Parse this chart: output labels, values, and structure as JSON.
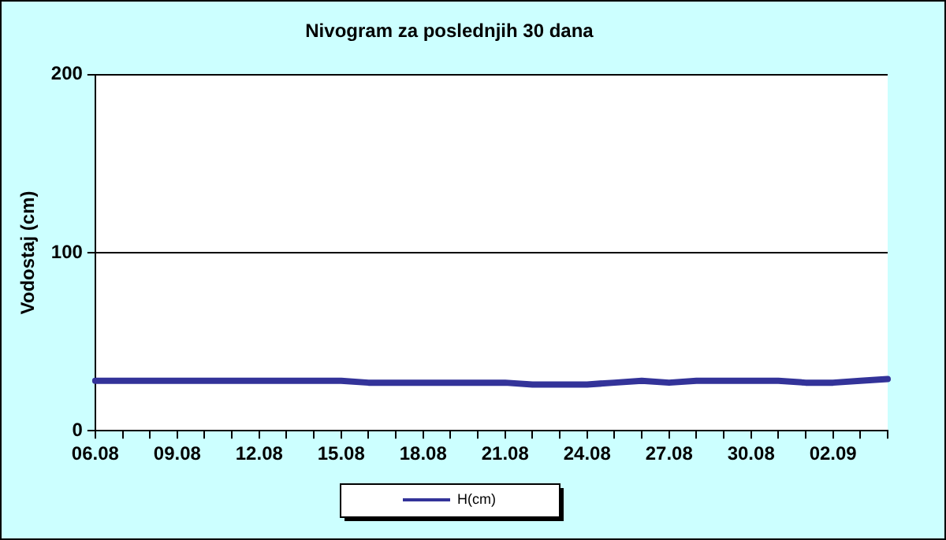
{
  "chart_data": {
    "type": "line",
    "title": "Nivogram za poslednjih 30 dana",
    "ylabel": "Vodostaj (cm)",
    "categories": [
      "06.08",
      null,
      null,
      "09.08",
      null,
      null,
      "12.08",
      null,
      null,
      "15.08",
      null,
      null,
      "18.08",
      null,
      null,
      "21.08",
      null,
      null,
      "24.08",
      null,
      null,
      "27.08",
      null,
      null,
      "30.08",
      null,
      null,
      "02.09",
      null,
      null
    ],
    "series": [
      {
        "name": "H(cm)",
        "color": "#333399",
        "values": [
          28,
          28,
          28,
          28,
          28,
          28,
          28,
          28,
          28,
          28,
          27,
          27,
          27,
          27,
          27,
          27,
          26,
          26,
          26,
          27,
          28,
          27,
          28,
          28,
          28,
          28,
          27,
          27,
          28,
          29
        ]
      }
    ],
    "ylim": [
      0,
      200
    ],
    "yticks": [
      0,
      100,
      200
    ],
    "grid": "y",
    "legend": "bottom",
    "marker": "none",
    "line_style": "solid"
  }
}
